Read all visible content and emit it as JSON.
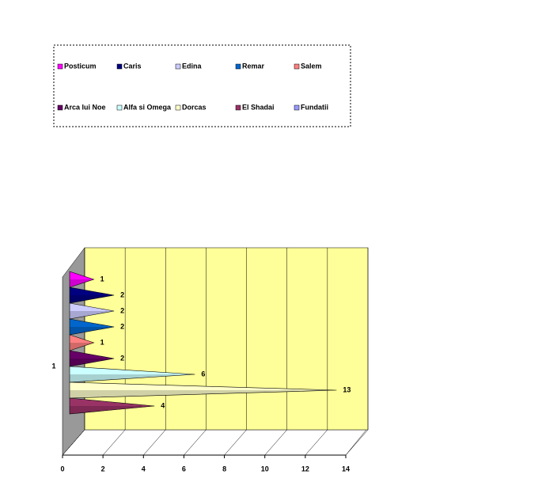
{
  "chart_data": {
    "type": "bar",
    "orientation": "horizontal",
    "pyramid_3d": true,
    "categories": [
      "1"
    ],
    "series": [
      {
        "name": "Posticum",
        "color": "#ff00ff",
        "values": [
          1
        ]
      },
      {
        "name": "Caris",
        "color": "#000080",
        "values": [
          2
        ]
      },
      {
        "name": "Edina",
        "color": "#ccccff",
        "values": [
          2
        ]
      },
      {
        "name": "Remar",
        "color": "#0066cc",
        "values": [
          2
        ]
      },
      {
        "name": "Salem",
        "color": "#ff8080",
        "values": [
          1
        ]
      },
      {
        "name": "Arca lui Noe",
        "color": "#660066",
        "values": [
          2
        ]
      },
      {
        "name": "Alfa si Omega",
        "color": "#ccffff",
        "values": [
          6
        ]
      },
      {
        "name": "Dorcas",
        "color": "#ffffcc",
        "values": [
          13
        ]
      },
      {
        "name": "El Shadai",
        "color": "#993366",
        "values": [
          4
        ]
      },
      {
        "name": "Fundatii",
        "color": "#9999ff",
        "values": [
          null
        ]
      }
    ],
    "xlim": [
      0,
      14
    ],
    "xticks": [
      0,
      2,
      4,
      6,
      8,
      10,
      12,
      14
    ],
    "grid": true,
    "wall_color": "#ffff99",
    "legend": "top"
  }
}
